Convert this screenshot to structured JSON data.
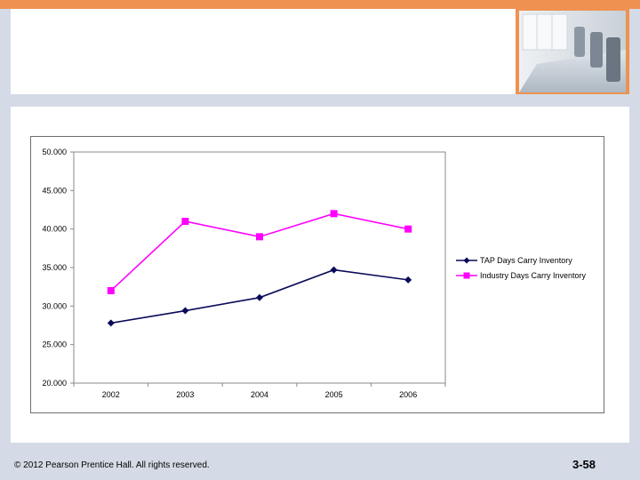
{
  "footer": {
    "copyright": "© 2012 Pearson Prentice Hall. All rights reserved.",
    "slide_number": "3-58"
  },
  "decoration": {
    "photo": "conference-room-chairs-photo"
  },
  "colors": {
    "accent_orange": "#ef9150",
    "slide_background": "#d4dbe6",
    "series_tap": "#0a0a5a",
    "series_industry": "#ff00ff"
  },
  "chart_data": {
    "type": "line",
    "categories": [
      "2002",
      "2003",
      "2004",
      "2005",
      "2006"
    ],
    "y_ticks": [
      "50.000",
      "45.000",
      "40.000",
      "35.000",
      "30.000",
      "25.000",
      "20.000"
    ],
    "ylim": [
      20,
      50
    ],
    "grid": false,
    "legend_position": "right",
    "series": [
      {
        "name": "TAP Days Carry Inventory",
        "marker": "diamond",
        "color": "#0a0a5a",
        "values": [
          27.8,
          29.4,
          31.1,
          34.7,
          33.4
        ]
      },
      {
        "name": "Industry Days Carry Inventory",
        "marker": "square",
        "color": "#ff00ff",
        "values": [
          32,
          41,
          39,
          42,
          40
        ]
      }
    ]
  }
}
